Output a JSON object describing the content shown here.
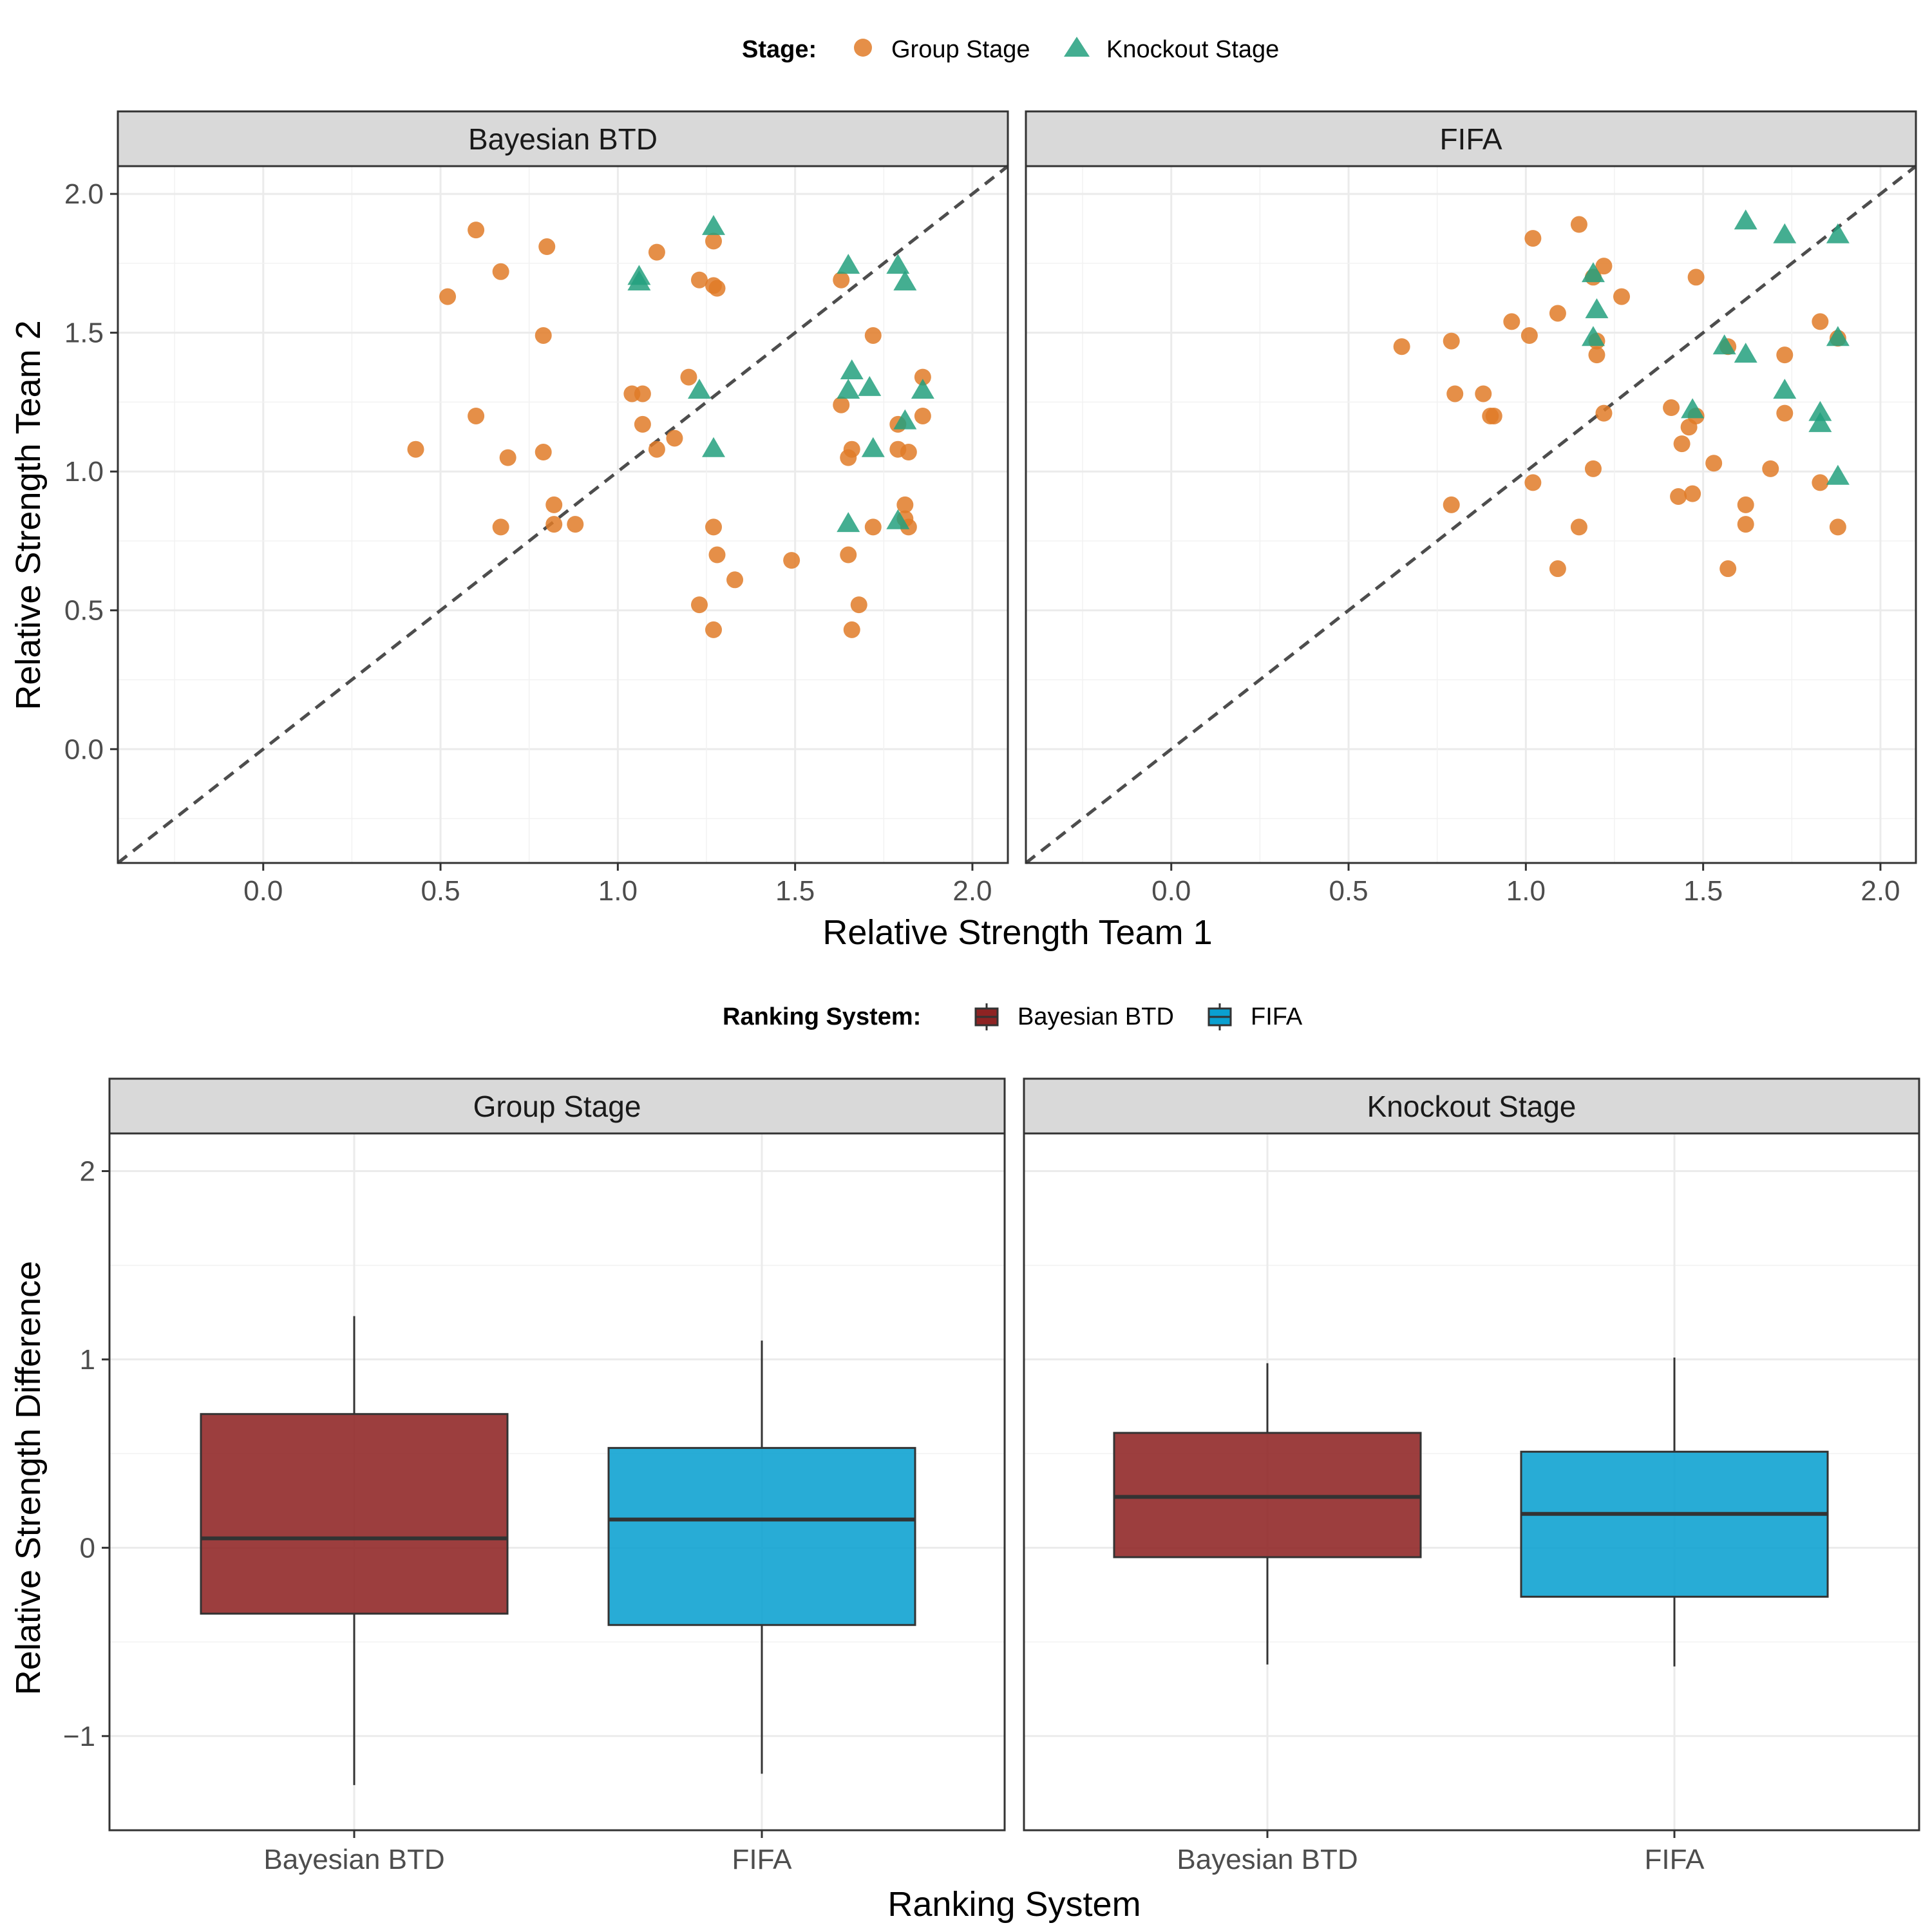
{
  "colors": {
    "group_stage": "#E07B28",
    "knockout_stage": "#23A07E",
    "bayesian_btd": "#8E2323",
    "fifa": "#0AA0D0",
    "strip_bg": "#D9D9D9",
    "reference_line": "#4D4D4D"
  },
  "scatter_legend": {
    "title": "Stage:",
    "items": [
      {
        "label": "Group Stage",
        "shape": "circle"
      },
      {
        "label": "Knockout Stage",
        "shape": "triangle"
      }
    ]
  },
  "box_legend": {
    "title": "Ranking System:",
    "items": [
      {
        "label": "Bayesian BTD"
      },
      {
        "label": "FIFA"
      }
    ]
  },
  "chart_data": [
    {
      "type": "scatter",
      "xlabel": "Relative Strength Team 1",
      "ylabel": "Relative Strength Team 2",
      "xlim": [
        -0.41,
        2.1
      ],
      "ylim": [
        -0.41,
        2.1
      ],
      "xticks": [
        0.0,
        0.5,
        1.0,
        1.5,
        2.0
      ],
      "yticks": [
        0.0,
        0.5,
        1.0,
        1.5,
        2.0
      ],
      "tick_labels": [
        "0.0",
        "0.5",
        "1.0",
        "1.5",
        "2.0"
      ],
      "reference_line": "y = x",
      "grid": true,
      "panels": [
        {
          "title": "Bayesian BTD",
          "group_stage": [
            [
              0.43,
              1.08
            ],
            [
              0.52,
              1.63
            ],
            [
              0.6,
              1.87
            ],
            [
              0.6,
              1.2
            ],
            [
              0.67,
              1.72
            ],
            [
              0.69,
              1.05
            ],
            [
              0.67,
              0.8
            ],
            [
              0.79,
              1.49
            ],
            [
              0.79,
              1.07
            ],
            [
              0.8,
              1.81
            ],
            [
              0.82,
              0.88
            ],
            [
              0.82,
              0.81
            ],
            [
              0.88,
              0.81
            ],
            [
              1.04,
              1.28
            ],
            [
              1.07,
              1.28
            ],
            [
              1.07,
              1.17
            ],
            [
              1.11,
              1.79
            ],
            [
              1.11,
              1.08
            ],
            [
              1.16,
              1.12
            ],
            [
              1.2,
              1.34
            ],
            [
              1.23,
              1.69
            ],
            [
              1.27,
              1.67
            ],
            [
              1.28,
              1.66
            ],
            [
              1.27,
              1.83
            ],
            [
              1.27,
              0.8
            ],
            [
              1.28,
              0.7
            ],
            [
              1.23,
              0.52
            ],
            [
              1.27,
              0.43
            ],
            [
              1.33,
              0.61
            ],
            [
              1.49,
              0.68
            ],
            [
              1.63,
              1.69
            ],
            [
              1.63,
              1.24
            ],
            [
              1.65,
              1.05
            ],
            [
              1.66,
              1.08
            ],
            [
              1.65,
              0.7
            ],
            [
              1.68,
              0.52
            ],
            [
              1.66,
              0.43
            ],
            [
              1.72,
              1.49
            ],
            [
              1.72,
              0.8
            ],
            [
              1.79,
              1.17
            ],
            [
              1.79,
              1.08
            ],
            [
              1.81,
              0.88
            ],
            [
              1.82,
              1.07
            ],
            [
              1.82,
              0.8
            ],
            [
              1.81,
              0.83
            ],
            [
              1.86,
              1.2
            ],
            [
              1.86,
              1.34
            ]
          ],
          "knockout_stage": [
            [
              1.06,
              1.7
            ],
            [
              1.06,
              1.68
            ],
            [
              1.27,
              1.88
            ],
            [
              1.23,
              1.29
            ],
            [
              1.27,
              1.08
            ],
            [
              1.65,
              1.74
            ],
            [
              1.66,
              1.36
            ],
            [
              1.65,
              1.29
            ],
            [
              1.71,
              1.3
            ],
            [
              1.72,
              1.08
            ],
            [
              1.65,
              0.81
            ],
            [
              1.79,
              1.74
            ],
            [
              1.81,
              1.68
            ],
            [
              1.81,
              1.18
            ],
            [
              1.79,
              0.82
            ],
            [
              1.86,
              1.29
            ]
          ]
        },
        {
          "title": "FIFA",
          "group_stage": [
            [
              0.65,
              1.45
            ],
            [
              0.79,
              1.47
            ],
            [
              0.8,
              1.28
            ],
            [
              0.79,
              0.88
            ],
            [
              0.88,
              1.28
            ],
            [
              0.9,
              1.2
            ],
            [
              0.91,
              1.2
            ],
            [
              0.96,
              1.54
            ],
            [
              1.01,
              1.49
            ],
            [
              1.02,
              1.84
            ],
            [
              1.02,
              0.96
            ],
            [
              1.09,
              1.57
            ],
            [
              1.09,
              0.65
            ],
            [
              1.15,
              1.89
            ],
            [
              1.15,
              0.8
            ],
            [
              1.19,
              1.7
            ],
            [
              1.19,
              1.01
            ],
            [
              1.2,
              1.47
            ],
            [
              1.2,
              1.42
            ],
            [
              1.22,
              1.74
            ],
            [
              1.22,
              1.21
            ],
            [
              1.27,
              1.63
            ],
            [
              1.41,
              1.23
            ],
            [
              1.44,
              1.1
            ],
            [
              1.43,
              0.91
            ],
            [
              1.46,
              1.16
            ],
            [
              1.47,
              0.92
            ],
            [
              1.48,
              1.7
            ],
            [
              1.48,
              1.2
            ],
            [
              1.53,
              1.03
            ],
            [
              1.57,
              1.45
            ],
            [
              1.57,
              0.65
            ],
            [
              1.62,
              0.88
            ],
            [
              1.62,
              0.81
            ],
            [
              1.69,
              1.01
            ],
            [
              1.73,
              1.42
            ],
            [
              1.73,
              1.21
            ],
            [
              1.83,
              1.54
            ],
            [
              1.83,
              0.96
            ],
            [
              1.88,
              1.48
            ],
            [
              1.88,
              0.8
            ]
          ],
          "knockout_stage": [
            [
              1.19,
              1.71
            ],
            [
              1.2,
              1.58
            ],
            [
              1.19,
              1.48
            ],
            [
              1.47,
              1.22
            ],
            [
              1.56,
              1.45
            ],
            [
              1.62,
              1.42
            ],
            [
              1.62,
              1.9
            ],
            [
              1.73,
              1.85
            ],
            [
              1.73,
              1.29
            ],
            [
              1.83,
              1.21
            ],
            [
              1.83,
              1.17
            ],
            [
              1.88,
              1.85
            ],
            [
              1.88,
              1.48
            ],
            [
              1.88,
              0.98
            ]
          ]
        }
      ]
    },
    {
      "type": "box",
      "xlabel": "Ranking System",
      "ylabel": "Relative Strength Difference",
      "categories": [
        "Bayesian BTD",
        "FIFA"
      ],
      "ylim": [
        -1.5,
        2.2
      ],
      "yticks": [
        -1,
        0,
        1,
        2
      ],
      "ytick_labels": [
        "−1",
        "0",
        "1",
        "2"
      ],
      "grid": true,
      "panels": [
        {
          "title": "Group Stage",
          "boxes": [
            {
              "name": "Bayesian BTD",
              "min": -1.26,
              "q1": -0.35,
              "median": 0.05,
              "q3": 0.71,
              "max": 1.23
            },
            {
              "name": "FIFA",
              "min": -1.2,
              "q1": -0.41,
              "median": 0.15,
              "q3": 0.53,
              "max": 1.1
            }
          ]
        },
        {
          "title": "Knockout Stage",
          "boxes": [
            {
              "name": "Bayesian BTD",
              "min": -0.62,
              "q1": -0.05,
              "median": 0.27,
              "q3": 0.61,
              "max": 0.98
            },
            {
              "name": "FIFA",
              "min": -0.63,
              "q1": -0.26,
              "median": 0.18,
              "q3": 0.51,
              "max": 1.01
            }
          ]
        }
      ]
    }
  ]
}
